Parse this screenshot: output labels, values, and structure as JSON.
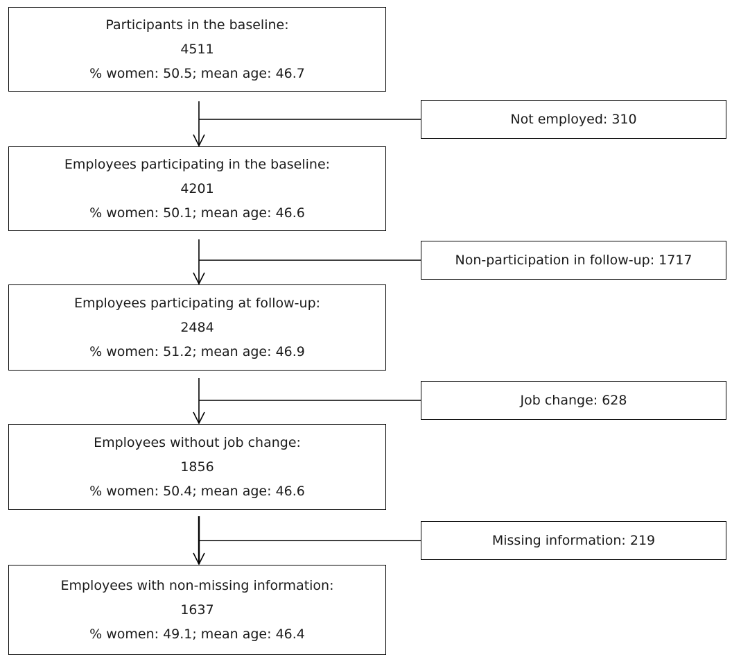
{
  "stages": [
    {
      "title": "Participants in the baseline:",
      "count": "4511",
      "stats": "% women: 50.5; mean age: 46.7"
    },
    {
      "title": "Employees participating in the baseline:",
      "count": "4201",
      "stats": "% women: 50.1; mean age: 46.6"
    },
    {
      "title": "Employees participating at follow-up:",
      "count": "2484",
      "stats": "% women: 51.2; mean age: 46.9"
    },
    {
      "title": "Employees without job change:",
      "count": "1856",
      "stats": "% women: 50.4; mean age: 46.6"
    },
    {
      "title": "Employees with non-missing information:",
      "count": "1637",
      "stats": "% women: 49.1; mean age: 46.4"
    }
  ],
  "exclusions": [
    {
      "label": "Not employed: 310"
    },
    {
      "label": "Non-participation in follow-up: 1717"
    },
    {
      "label": "Job change: 628"
    },
    {
      "label": "Missing information: 219"
    }
  ]
}
